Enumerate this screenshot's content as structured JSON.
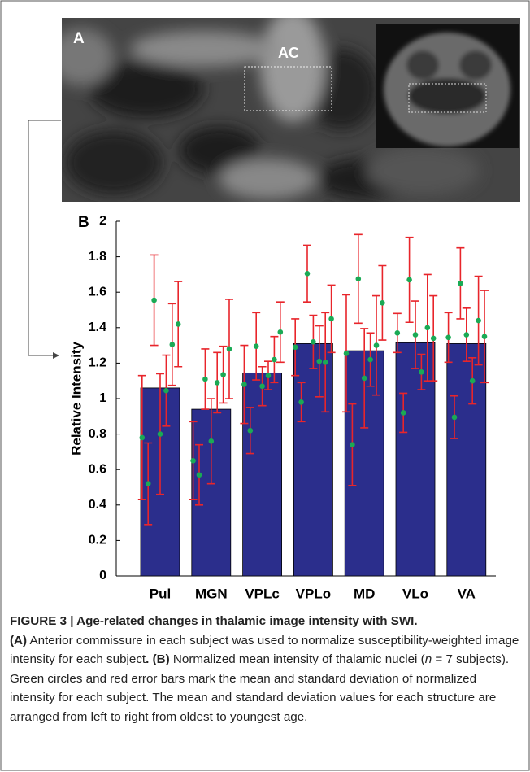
{
  "panel_a": {
    "label": "A",
    "annotation": "AC"
  },
  "chart_data": {
    "type": "bar",
    "panel_label": "B",
    "y_label": "Relative Intensity",
    "categories": [
      "Pul",
      "MGN",
      "VPLc",
      "VPLo",
      "MD",
      "VLo",
      "VA"
    ],
    "values": [
      1.06,
      0.94,
      1.145,
      1.31,
      1.27,
      1.315,
      1.31
    ],
    "color": "#2b2e8c",
    "points": [
      [
        0.78,
        0.52,
        1.555,
        0.8,
        1.045,
        1.305,
        1.42
      ],
      [
        0.65,
        0.57,
        1.11,
        0.76,
        1.09,
        1.135,
        1.28
      ],
      [
        1.08,
        0.82,
        1.295,
        1.07,
        1.13,
        1.22,
        1.375
      ],
      [
        1.29,
        0.98,
        1.705,
        1.32,
        1.21,
        1.205,
        1.45
      ],
      [
        1.255,
        0.74,
        1.675,
        1.115,
        1.22,
        1.3,
        1.54
      ],
      [
        1.37,
        0.92,
        1.67,
        1.36,
        1.15,
        1.4,
        1.34
      ],
      [
        1.345,
        0.895,
        1.65,
        1.36,
        1.1,
        1.44,
        1.35
      ]
    ],
    "errors": [
      [
        0.35,
        0.23,
        0.255,
        0.34,
        0.2,
        0.23,
        0.24
      ],
      [
        0.22,
        0.17,
        0.17,
        0.24,
        0.17,
        0.16,
        0.28
      ],
      [
        0.22,
        0.13,
        0.19,
        0.11,
        0.08,
        0.13,
        0.17
      ],
      [
        0.16,
        0.11,
        0.16,
        0.15,
        0.2,
        0.28,
        0.19
      ],
      [
        0.33,
        0.23,
        0.25,
        0.28,
        0.15,
        0.28,
        0.21
      ],
      [
        0.11,
        0.11,
        0.24,
        0.19,
        0.1,
        0.3,
        0.24
      ],
      [
        0.14,
        0.12,
        0.2,
        0.15,
        0.13,
        0.25,
        0.26
      ]
    ],
    "point_color": "#1aaa55",
    "error_color": "#e8252b",
    "ylim": [
      0,
      2
    ],
    "yticks": [
      0,
      0.2,
      0.4,
      0.6,
      0.8,
      1,
      1.2,
      1.4,
      1.6,
      1.8,
      2
    ]
  },
  "caption": {
    "title": "FIGURE 3 | Age-related changes in thalamic image intensity with SWI.",
    "segments": [
      {
        "text": "(A)",
        "bold": true
      },
      {
        "text": " Anterior commissure in each subject was used to normalize susceptibility-weighted image intensity for each subject"
      },
      {
        "text": ". (B)",
        "bold": true
      },
      {
        "text": " Normalized mean intensity of thalamic nuclei ("
      },
      {
        "text": "n",
        "italic": true
      },
      {
        "text": " = 7 subjects). Green circles and red error bars mark the mean and standard deviation of normalized intensity for each subject. The mean and standard deviation values for each structure are arranged from left to right from oldest to youngest age."
      }
    ]
  }
}
